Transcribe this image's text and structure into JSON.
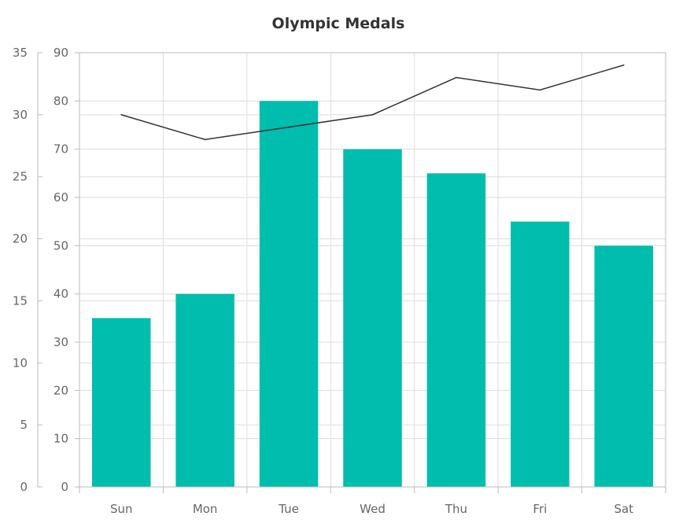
{
  "chart_data": {
    "type": "bar",
    "title": "Olympic Medals",
    "categories": [
      "Sun",
      "Mon",
      "Tue",
      "Wed",
      "Thu",
      "Fri",
      "Sat"
    ],
    "series": [
      {
        "type": "bar",
        "axis": "primary-y",
        "color": "#00bdae",
        "values": [
          35,
          40,
          80,
          70,
          65,
          55,
          50
        ]
      },
      {
        "type": "line",
        "axis": "secondary-y",
        "color": "#333333",
        "values": [
          30,
          28,
          29,
          30,
          33,
          32,
          34
        ]
      }
    ],
    "y_primary": {
      "range": [
        0,
        90
      ],
      "ticks": [
        "0",
        "10",
        "20",
        "30",
        "40",
        "50",
        "60",
        "70",
        "80",
        "90"
      ]
    },
    "y_secondary": {
      "range": [
        0,
        35
      ],
      "ticks": [
        "0",
        "5",
        "10",
        "15",
        "20",
        "25",
        "30",
        "35"
      ]
    },
    "grid": true,
    "legend": "none"
  }
}
